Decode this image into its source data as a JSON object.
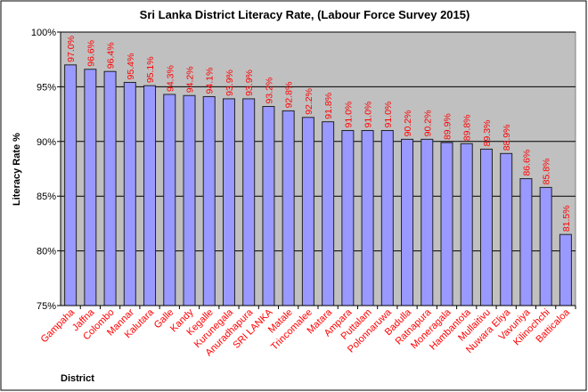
{
  "chart_data": {
    "type": "bar",
    "title": "Sri Lanka District Literacy Rate, (Labour Force Survey 2015)",
    "xlabel": "District",
    "ylabel": "Literacy Rate %",
    "ylim": [
      75,
      100
    ],
    "yticks": [
      "75%",
      "80%",
      "85%",
      "90%",
      "95%",
      "100%"
    ],
    "ytick_values": [
      75,
      80,
      85,
      90,
      95,
      100
    ],
    "grid": true,
    "categories": [
      "Gampaha",
      "Jaffna",
      "Colombo",
      "Mannar",
      "Kalutara",
      "Galle",
      "Kandy",
      "Kegalle",
      "Kurunegala",
      "Anuradhapura",
      "SRI LANKA",
      "Matale",
      "Trincomalee",
      "Matara",
      "Ampara",
      "Puttalam",
      "Polonnaruwa",
      "Badulla",
      "Ratnapura",
      "Moneragala",
      "Hambantota",
      "Mullaitivu",
      "Nuwara Eliya",
      "Vavuniya",
      "Kilinochchi",
      "Batticaloa"
    ],
    "values": [
      97.0,
      96.6,
      96.4,
      95.4,
      95.1,
      94.3,
      94.2,
      94.1,
      93.9,
      93.9,
      93.2,
      92.8,
      92.2,
      91.8,
      91.0,
      91.0,
      91.0,
      90.2,
      90.2,
      89.9,
      89.8,
      89.3,
      88.9,
      86.6,
      85.8,
      81.5
    ],
    "data_labels": [
      "97.0%",
      "96.6%",
      "96.4%",
      "95.4%",
      "95.1%",
      "94.3%",
      "94.2%",
      "94.1%",
      "93.9%",
      "93.9%",
      "93.2%",
      "92.8%",
      "92.2%",
      "91.8%",
      "91.0%",
      "91.0%",
      "91.0%",
      "90.2%",
      "90.2%",
      "89.9%",
      "89.8%",
      "89.3%",
      "88.9%",
      "86.6%",
      "85.8%",
      "81.5%"
    ],
    "colors": {
      "bar": "#9999ff",
      "plot_bg": "#c0c0c0",
      "label": "#ff0000"
    }
  }
}
